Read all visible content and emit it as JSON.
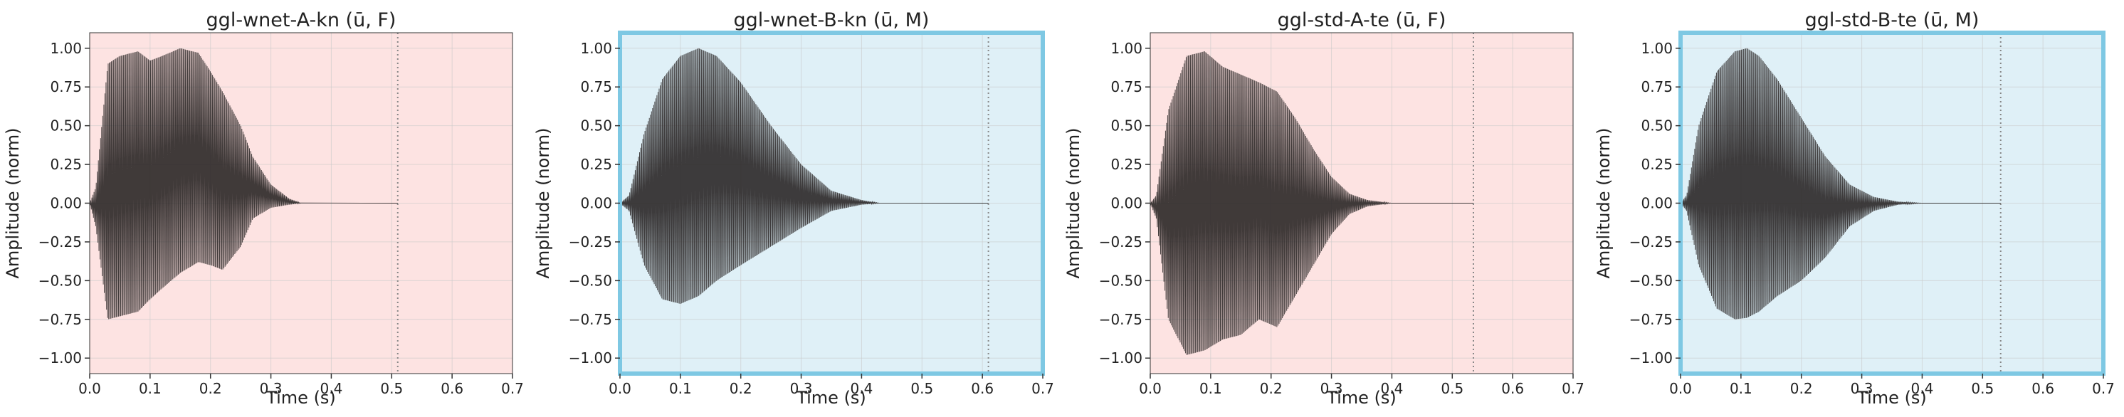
{
  "chart_data": [
    {
      "type": "line",
      "title": "ggl-wnet-A-kn (ū, F)",
      "xlabel": "Time (s)",
      "ylabel": "Amplitude (norm)",
      "xlim": [
        0,
        0.7
      ],
      "ylim": [
        -1.1,
        1.1
      ],
      "x_ticks": [
        "0.0",
        "0.1",
        "0.2",
        "0.3",
        "0.4",
        "0.5",
        "0.6",
        "0.7"
      ],
      "y_ticks": [
        "1.00",
        "0.75",
        "0.50",
        "0.25",
        "0.00",
        "−0.25",
        "−0.50",
        "−0.75",
        "−1.00"
      ],
      "grid": true,
      "background_color": "#fde3e2",
      "highlight_border": false,
      "end_marker_x": 0.51,
      "signal_end_x": 0.51,
      "envelope": {
        "t": [
          0.0,
          0.01,
          0.03,
          0.05,
          0.08,
          0.1,
          0.12,
          0.15,
          0.18,
          0.2,
          0.22,
          0.25,
          0.27,
          0.3,
          0.33,
          0.35
        ],
        "upper": [
          0.0,
          0.1,
          0.9,
          0.95,
          0.98,
          0.92,
          0.95,
          1.0,
          0.97,
          0.85,
          0.72,
          0.5,
          0.3,
          0.12,
          0.03,
          0.0
        ],
        "lower": [
          0.0,
          -0.15,
          -0.75,
          -0.73,
          -0.7,
          -0.62,
          -0.55,
          -0.45,
          -0.38,
          -0.4,
          -0.43,
          -0.28,
          -0.1,
          -0.03,
          -0.01,
          0.0
        ]
      }
    },
    {
      "type": "line",
      "title": "ggl-wnet-B-kn (ū, M)",
      "xlabel": "Time (s)",
      "ylabel": "Amplitude (norm)",
      "xlim": [
        0,
        0.7
      ],
      "ylim": [
        -1.1,
        1.1
      ],
      "x_ticks": [
        "0.0",
        "0.1",
        "0.2",
        "0.3",
        "0.4",
        "0.5",
        "0.6",
        "0.7"
      ],
      "y_ticks": [
        "1.00",
        "0.75",
        "0.50",
        "0.25",
        "0.00",
        "−0.25",
        "−0.50",
        "−0.75",
        "−1.00"
      ],
      "grid": true,
      "background_color": "#dff0f7",
      "highlight_border": true,
      "end_marker_x": 0.61,
      "signal_end_x": 0.61,
      "envelope": {
        "t": [
          0.0,
          0.015,
          0.04,
          0.07,
          0.1,
          0.13,
          0.16,
          0.2,
          0.25,
          0.3,
          0.35,
          0.4,
          0.43
        ],
        "upper": [
          0.0,
          0.05,
          0.45,
          0.8,
          0.95,
          1.0,
          0.95,
          0.78,
          0.5,
          0.25,
          0.08,
          0.02,
          0.0
        ],
        "lower": [
          0.0,
          -0.05,
          -0.4,
          -0.62,
          -0.65,
          -0.6,
          -0.5,
          -0.4,
          -0.28,
          -0.16,
          -0.05,
          -0.01,
          0.0
        ]
      }
    },
    {
      "type": "line",
      "title": "ggl-std-A-te (ū, F)",
      "xlabel": "Time (s)",
      "ylabel": "Amplitude (norm)",
      "xlim": [
        0,
        0.7
      ],
      "ylim": [
        -1.1,
        1.1
      ],
      "x_ticks": [
        "0.0",
        "0.1",
        "0.2",
        "0.3",
        "0.4",
        "0.5",
        "0.6",
        "0.7"
      ],
      "y_ticks": [
        "1.00",
        "0.75",
        "0.50",
        "0.25",
        "0.00",
        "−0.25",
        "−0.50",
        "−0.75",
        "−1.00"
      ],
      "grid": true,
      "background_color": "#fde3e2",
      "highlight_border": false,
      "end_marker_x": 0.535,
      "signal_end_x": 0.535,
      "envelope": {
        "t": [
          0.0,
          0.01,
          0.03,
          0.06,
          0.09,
          0.12,
          0.15,
          0.18,
          0.21,
          0.24,
          0.27,
          0.3,
          0.33,
          0.36,
          0.4
        ],
        "upper": [
          0.0,
          0.05,
          0.6,
          0.95,
          0.98,
          0.88,
          0.83,
          0.78,
          0.72,
          0.55,
          0.35,
          0.17,
          0.06,
          0.02,
          0.0
        ],
        "lower": [
          0.0,
          -0.1,
          -0.75,
          -0.98,
          -0.95,
          -0.88,
          -0.85,
          -0.75,
          -0.8,
          -0.6,
          -0.4,
          -0.2,
          -0.07,
          -0.02,
          0.0
        ]
      }
    },
    {
      "type": "line",
      "title": "ggl-std-B-te (ū, M)",
      "xlabel": "Time (s)",
      "ylabel": "Amplitude (norm)",
      "xlim": [
        0,
        0.7
      ],
      "ylim": [
        -1.1,
        1.1
      ],
      "x_ticks": [
        "0.0",
        "0.1",
        "0.2",
        "0.3",
        "0.4",
        "0.5",
        "0.6",
        "0.7"
      ],
      "y_ticks": [
        "1.00",
        "0.75",
        "0.50",
        "0.25",
        "0.00",
        "−0.25",
        "−0.50",
        "−0.75",
        "−1.00"
      ],
      "grid": true,
      "background_color": "#dff0f7",
      "highlight_border": true,
      "end_marker_x": 0.53,
      "signal_end_x": 0.53,
      "envelope": {
        "t": [
          0.0,
          0.01,
          0.03,
          0.06,
          0.09,
          0.11,
          0.13,
          0.16,
          0.2,
          0.24,
          0.28,
          0.32,
          0.36,
          0.4
        ],
        "upper": [
          0.0,
          0.05,
          0.5,
          0.85,
          0.98,
          1.0,
          0.95,
          0.8,
          0.55,
          0.3,
          0.12,
          0.04,
          0.01,
          0.0
        ],
        "lower": [
          0.0,
          -0.05,
          -0.4,
          -0.68,
          -0.75,
          -0.74,
          -0.7,
          -0.6,
          -0.5,
          -0.35,
          -0.15,
          -0.05,
          -0.01,
          0.0
        ]
      }
    }
  ],
  "colors": {
    "waveform": "#2b2727",
    "grid": "#c9c9c9",
    "highlight_border": "#7ec8e3",
    "end_marker": "#888888",
    "axis": "#333333"
  }
}
